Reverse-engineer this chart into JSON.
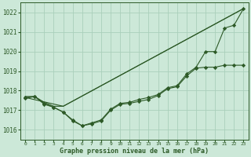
{
  "bg_color": "#cce8d8",
  "grid_color": "#aacfbb",
  "line_color": "#2d5a27",
  "xlabel": "Graphe pression niveau de la mer (hPa)",
  "xlim": [
    -0.5,
    23.5
  ],
  "ylim": [
    1015.5,
    1022.5
  ],
  "yticks": [
    1016,
    1017,
    1018,
    1019,
    1020,
    1021,
    1022
  ],
  "xticks": [
    0,
    1,
    2,
    3,
    4,
    5,
    6,
    7,
    8,
    9,
    10,
    11,
    12,
    13,
    14,
    15,
    16,
    17,
    18,
    19,
    20,
    21,
    22,
    23
  ],
  "line1_x": [
    0,
    1,
    2,
    3,
    4,
    5,
    6,
    7,
    8,
    9,
    10,
    11,
    12,
    13,
    14,
    15,
    16,
    17,
    18,
    19,
    20,
    21,
    22,
    23
  ],
  "line1_y": [
    1017.6,
    1017.7,
    1017.3,
    1017.15,
    1016.9,
    1016.45,
    1016.2,
    1016.3,
    1016.45,
    1017.0,
    1017.3,
    1017.35,
    1017.45,
    1017.55,
    1017.75,
    1018.1,
    1018.2,
    1018.75,
    1019.15,
    1019.2,
    1019.2,
    1019.3,
    1019.3,
    1019.3
  ],
  "line2_x": [
    0,
    1,
    2,
    3,
    4,
    23
  ],
  "line2_y": [
    1017.7,
    1017.7,
    1017.4,
    1017.2,
    1017.2,
    1022.2
  ],
  "line3_x": [
    0,
    1,
    2,
    3,
    4,
    5,
    6,
    7,
    8,
    9,
    10,
    11,
    12,
    13,
    14,
    15,
    16,
    17,
    18,
    19,
    20,
    21,
    22,
    23
  ],
  "line3_y": [
    1017.65,
    1017.7,
    1017.35,
    1017.15,
    1016.9,
    1016.5,
    1016.2,
    1016.35,
    1016.5,
    1017.05,
    1017.35,
    1017.4,
    1017.55,
    1017.65,
    1017.8,
    1018.15,
    1018.25,
    1018.85,
    1019.2,
    1020.0,
    1020.0,
    1021.2,
    1021.35,
    1022.2
  ],
  "line4_x": [
    0,
    4,
    23
  ],
  "line4_y": [
    1017.65,
    1017.2,
    1022.2
  ],
  "ytick_fontsize": 5.5,
  "xtick_fontsize": 4.5,
  "xlabel_fontsize": 6.0
}
